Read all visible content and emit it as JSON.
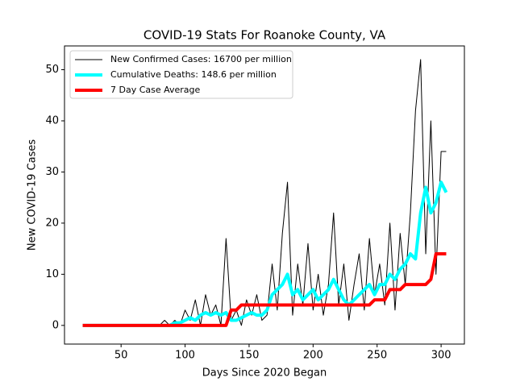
{
  "chart_data": {
    "type": "line",
    "title": "COVID-19 Stats For Roanoke County, VA",
    "xlabel": "Days Since 2020 Began",
    "ylabel": "New COVID-19 Cases",
    "x": [
      20,
      24,
      28,
      32,
      36,
      40,
      44,
      48,
      52,
      56,
      60,
      64,
      68,
      72,
      76,
      80,
      84,
      88,
      92,
      96,
      100,
      104,
      108,
      112,
      116,
      120,
      124,
      128,
      132,
      136,
      140,
      144,
      148,
      152,
      156,
      160,
      164,
      168,
      172,
      176,
      180,
      184,
      188,
      192,
      196,
      200,
      204,
      208,
      212,
      216,
      220,
      224,
      228,
      232,
      236,
      240,
      244,
      248,
      252,
      256,
      260,
      264,
      268,
      272,
      276,
      280,
      284,
      288,
      292,
      296,
      300,
      304
    ],
    "series": [
      {
        "name": "New Confirmed Cases: 16700 per million",
        "color": "#000000",
        "linewidth": 1,
        "values": [
          0,
          0,
          0,
          0,
          0,
          0,
          0,
          0,
          0,
          0,
          0,
          0,
          0,
          0,
          0,
          0,
          1,
          0,
          1,
          0,
          3,
          1,
          5,
          0,
          6,
          2,
          4,
          0,
          17,
          1,
          3,
          0,
          5,
          2,
          6,
          1,
          2,
          12,
          3,
          18,
          28,
          2,
          12,
          4,
          16,
          3,
          10,
          2,
          8,
          22,
          4,
          12,
          1,
          8,
          14,
          3,
          17,
          6,
          12,
          4,
          20,
          3,
          18,
          8,
          22,
          42,
          52,
          14,
          40,
          10,
          34,
          34
        ]
      },
      {
        "name": "Cumulative Deaths: 148.6 per million",
        "color": "#00ffff",
        "linewidth": 4,
        "values": [
          0,
          0,
          0,
          0,
          0,
          0,
          0,
          0,
          0,
          0,
          0,
          0,
          0,
          0,
          0,
          0,
          0,
          0,
          0.5,
          0.5,
          1,
          1.5,
          1,
          2,
          2.5,
          2,
          2.5,
          2,
          2.5,
          1,
          1,
          1.5,
          2,
          2.5,
          2,
          2,
          3,
          6,
          7,
          8,
          10,
          6,
          7,
          5,
          6,
          7,
          5,
          6,
          7,
          9,
          7,
          5,
          4,
          5,
          6,
          7,
          8,
          6,
          8,
          8,
          10,
          9,
          11,
          12,
          14,
          13,
          22,
          27,
          22,
          24,
          28,
          26
        ]
      },
      {
        "name": "7 Day Case Average",
        "color": "#ff0000",
        "linewidth": 4,
        "values": [
          0,
          0,
          0,
          0,
          0,
          0,
          0,
          0,
          0,
          0,
          0,
          0,
          0,
          0,
          0,
          0,
          0,
          0,
          0,
          0,
          0,
          0,
          0,
          0,
          0,
          0,
          0,
          0,
          0,
          3,
          3,
          4,
          4,
          4,
          4,
          4,
          4,
          4,
          4,
          4,
          4,
          4,
          4,
          4,
          4,
          4,
          4,
          4,
          4,
          4,
          4,
          4,
          4,
          4,
          4,
          4,
          4,
          5,
          5,
          5,
          7,
          7,
          7,
          8,
          8,
          8,
          8,
          8,
          9,
          14,
          14,
          14
        ]
      }
    ],
    "xlim": [
      5.8,
      318.2
    ],
    "xticks": [
      50,
      100,
      150,
      200,
      250,
      300
    ],
    "ylim": [
      -3.65,
      54.65
    ],
    "yticks": [
      0,
      10,
      20,
      30,
      40,
      50
    ],
    "legend": "upper left"
  }
}
